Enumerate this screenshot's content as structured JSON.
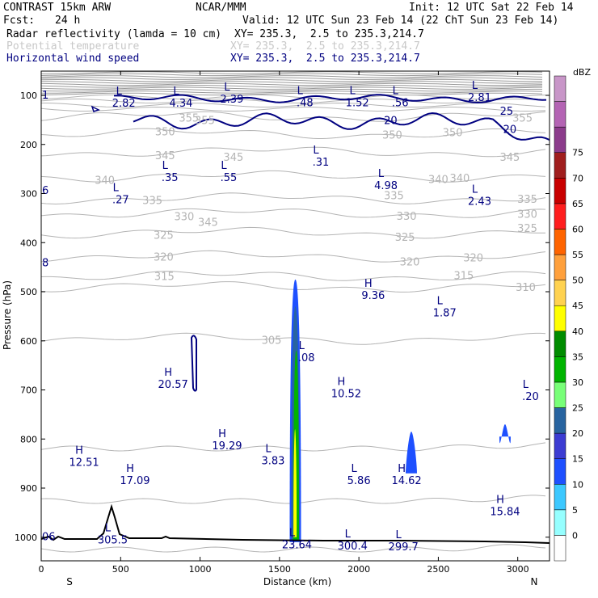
{
  "header": {
    "model": "CONTRAST 15km ARW",
    "producer": "NCAR/MMM",
    "init": "Init: 12 UTC Sat 22 Feb 14",
    "fcst_label": "Fcst:",
    "fcst_value": "24 h",
    "valid": "Valid: 12 UTC Sun 23 Feb 14 (22 ChT Sun 23 Feb 14)",
    "fields": [
      {
        "name": "Radar reflectivity (lamda = 10 cm)",
        "xy": "XY= 235.3,  2.5 to 235.3,214.7",
        "color": "#000000"
      },
      {
        "name": "Potential temperature",
        "xy": "XY= 235.3,  2.5 to 235.3,214.7",
        "color": "#c8c8c8"
      },
      {
        "name": "Horizontal wind speed",
        "xy": "XY= 235.3,  2.5 to 235.3,214.7",
        "color": "#000080"
      }
    ]
  },
  "chart_data": {
    "type": "cross-section",
    "xlabel": "Distance (km)",
    "ylabel": "Pressure (hPa)",
    "xlim": [
      0,
      3200
    ],
    "ylim": [
      1050,
      50
    ],
    "xticks": [
      0,
      500,
      1000,
      1500,
      2000,
      2500,
      3000
    ],
    "yticks": [
      100,
      200,
      300,
      400,
      500,
      600,
      700,
      800,
      900,
      1000
    ],
    "end_labels": {
      "left": "S",
      "right": "N"
    },
    "colorbar": {
      "title": "dBZ",
      "levels": [
        0,
        5,
        10,
        15,
        20,
        25,
        30,
        35,
        40,
        45,
        50,
        55,
        60,
        65,
        70,
        75
      ],
      "colors": [
        "#ffffff",
        "#96ffff",
        "#3cc8ff",
        "#1e50ff",
        "#3c3cd2",
        "#2864a0",
        "#78ff78",
        "#00b400",
        "#008c00",
        "#ffff00",
        "#ffd250",
        "#ffa03c",
        "#ff6400",
        "#ff1e1e",
        "#c80000",
        "#a01e1e",
        "#8c3c8c",
        "#b464b4",
        "#c896c8"
      ]
    },
    "theta_contours": [
      {
        "value": 345,
        "p": 215,
        "label_positions": [
          [
            780,
            222
          ],
          [
            1050,
            358
          ],
          [
            1210,
            225
          ],
          [
            2950,
            225
          ]
        ]
      },
      {
        "value": 340,
        "p": 265,
        "label_positions": [
          [
            400,
            272
          ],
          [
            2500,
            270
          ],
          [
            2635,
            268
          ]
        ]
      },
      {
        "value": 335,
        "p": 310,
        "label_positions": [
          [
            700,
            313
          ],
          [
            2220,
            303
          ],
          [
            3060,
            311
          ]
        ]
      },
      {
        "value": 330,
        "p": 340,
        "label_positions": [
          [
            900,
            346
          ],
          [
            2300,
            345
          ],
          [
            3060,
            341
          ]
        ]
      },
      {
        "value": 325,
        "p": 380,
        "label_positions": [
          [
            770,
            384
          ],
          [
            2290,
            388
          ],
          [
            3060,
            370
          ]
        ]
      },
      {
        "value": 320,
        "p": 428,
        "label_positions": [
          [
            770,
            428
          ],
          [
            2320,
            438
          ],
          [
            2720,
            430
          ]
        ]
      },
      {
        "value": 315,
        "p": 468,
        "label_positions": [
          [
            775,
            468
          ],
          [
            2660,
            466
          ]
        ]
      },
      {
        "value": 310,
        "p": 490,
        "label_positions": [
          [
            3050,
            490
          ]
        ]
      },
      {
        "value": 305,
        "p": 596,
        "label_positions": [
          [
            1450,
            598
          ]
        ]
      },
      {
        "value": 350,
        "p": 178,
        "label_positions": [
          [
            780,
            173
          ],
          [
            2210,
            180
          ],
          [
            2590,
            175
          ]
        ]
      },
      {
        "value": 355,
        "p": 143,
        "label_positions": [
          [
            930,
            145
          ],
          [
            1030,
            150
          ],
          [
            3030,
            145
          ]
        ]
      }
    ],
    "wind_labels": [
      {
        "value": "25",
        "x": 2930,
        "p": 131
      },
      {
        "value": "20",
        "x": 2200,
        "p": 150
      },
      {
        "value": "20",
        "x": 2950,
        "p": 168
      }
    ],
    "extrema": [
      {
        "type": "L",
        "value": "2.82",
        "x": 520,
        "p": 108
      },
      {
        "type": "L",
        "value": "4.34",
        "x": 880,
        "p": 108
      },
      {
        "type": "L",
        "value": "2.39",
        "x": 1200,
        "p": 100
      },
      {
        "type": "L",
        "value": ".48",
        "x": 1660,
        "p": 107
      },
      {
        "type": "L",
        "value": "1.52",
        "x": 1990,
        "p": 107
      },
      {
        "type": "L",
        "value": ".56",
        "x": 2260,
        "p": 107
      },
      {
        "type": "L",
        "value": "2.81",
        "x": 2760,
        "p": 97
      },
      {
        "type": "L",
        "value": ".31",
        "x": 1760,
        "p": 228
      },
      {
        "type": "L",
        "value": ".35",
        "x": 810,
        "p": 260
      },
      {
        "type": "L",
        "value": ".55",
        "x": 1180,
        "p": 260
      },
      {
        "type": "L",
        "value": "4.98",
        "x": 2170,
        "p": 276
      },
      {
        "type": "L",
        "value": ".27",
        "x": 500,
        "p": 305
      },
      {
        "type": "L",
        "value": "2.43",
        "x": 2760,
        "p": 308
      },
      {
        "type": "H",
        "value": "9.36",
        "x": 2090,
        "p": 500
      },
      {
        "type": "L",
        "value": "1.87",
        "x": 2540,
        "p": 535
      },
      {
        "type": "L",
        "value": ".08",
        "x": 1670,
        "p": 627
      },
      {
        "type": "H",
        "value": "20.57",
        "x": 830,
        "p": 681
      },
      {
        "type": "H",
        "value": "10.52",
        "x": 1920,
        "p": 700
      },
      {
        "type": "L",
        "value": ".20",
        "x": 3080,
        "p": 706
      },
      {
        "type": "H",
        "value": "19.29",
        "x": 1170,
        "p": 806
      },
      {
        "type": "L",
        "value": "3.83",
        "x": 1460,
        "p": 837
      },
      {
        "type": "H",
        "value": "12.51",
        "x": 270,
        "p": 840
      },
      {
        "type": "H",
        "value": "17.09",
        "x": 590,
        "p": 877
      },
      {
        "type": "L",
        "value": "5.86",
        "x": 2000,
        "p": 877
      },
      {
        "type": "H",
        "value": "14.62",
        "x": 2300,
        "p": 877
      },
      {
        "type": "H",
        "value": "15.84",
        "x": 2920,
        "p": 940
      },
      {
        "type": "L",
        "value": "23.64",
        "x": 1610,
        "p": 1008
      },
      {
        "type": "L",
        "value": "300.4",
        "x": 1960,
        "p": 1010
      },
      {
        "type": "L",
        "value": "299.7",
        "x": 2280,
        "p": 1012
      },
      {
        "type": "L",
        "value": "305.5",
        "x": 450,
        "p": 998
      }
    ],
    "reflectivity_cells": [
      {
        "x": 1600,
        "p_top": 475,
        "p_bottom": 1010,
        "dbz": 10
      },
      {
        "x": 1600,
        "p_top": 530,
        "p_bottom": 1008,
        "dbz": 20
      },
      {
        "x": 1605,
        "p_top": 620,
        "p_bottom": 1005,
        "dbz": 30
      },
      {
        "x": 1598,
        "p_top": 780,
        "p_bottom": 1000,
        "dbz": 40
      },
      {
        "x": 2330,
        "p_top": 785,
        "p_bottom": 870,
        "dbz": 10
      },
      {
        "x": 2920,
        "p_top": 770,
        "p_bottom": 795,
        "dbz": 10
      }
    ],
    "edge_labels": [
      {
        "value": "1",
        "p": 98
      },
      {
        "value": "6",
        "p": 293
      },
      {
        "value": "8",
        "p": 440
      },
      {
        "value": "06",
        "p": 998
      }
    ]
  }
}
